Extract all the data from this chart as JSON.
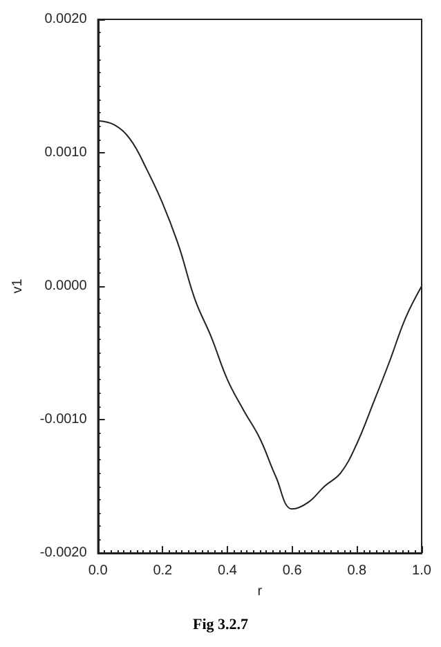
{
  "chart_data": {
    "type": "line",
    "xlabel": "r",
    "ylabel": "v1",
    "annotations": [
      "Fig 3.2.7"
    ],
    "x": [
      0,
      0.05,
      0.1,
      0.15,
      0.2,
      0.25,
      0.3,
      0.35,
      0.4,
      0.45,
      0.5,
      0.55,
      0.6,
      0.65,
      0.7,
      0.75,
      0.8,
      0.85,
      0.9,
      0.95,
      1.0
    ],
    "series": [
      {
        "color": "#222222",
        "values": [
          0.00124,
          0.00121,
          0.0011,
          0.00088,
          0.00062,
          0.0003,
          -0.0001,
          -0.00038,
          -0.0007,
          -0.00093,
          -0.00114,
          -0.00143,
          -0.00167,
          -0.00162,
          -0.0015,
          -0.0014,
          -0.00118,
          -0.00088,
          -0.00057,
          -0.00024,
          0.0
        ]
      }
    ],
    "xlim": [
      0,
      1
    ],
    "xticks": [
      {
        "value": 0,
        "label": "0.0"
      },
      {
        "value": 0.2,
        "label": "0.2"
      },
      {
        "value": 0.4,
        "label": "0.4"
      },
      {
        "value": 0.6,
        "label": "0.6"
      },
      {
        "value": 0.8,
        "label": "0.8"
      },
      {
        "value": 1,
        "label": "1.0"
      }
    ],
    "ylim": [
      -0.002,
      0.002
    ],
    "yticks": [
      {
        "value": -0.002,
        "label": "-0.0020"
      },
      {
        "value": -0.001,
        "label": "-0.0010"
      },
      {
        "value": 0,
        "label": "0.0000"
      },
      {
        "value": 0.001,
        "label": "0.0010"
      },
      {
        "value": 0.002,
        "label": "0.0020"
      }
    ],
    "grid": false,
    "marker": "none",
    "line_style": "solid"
  }
}
